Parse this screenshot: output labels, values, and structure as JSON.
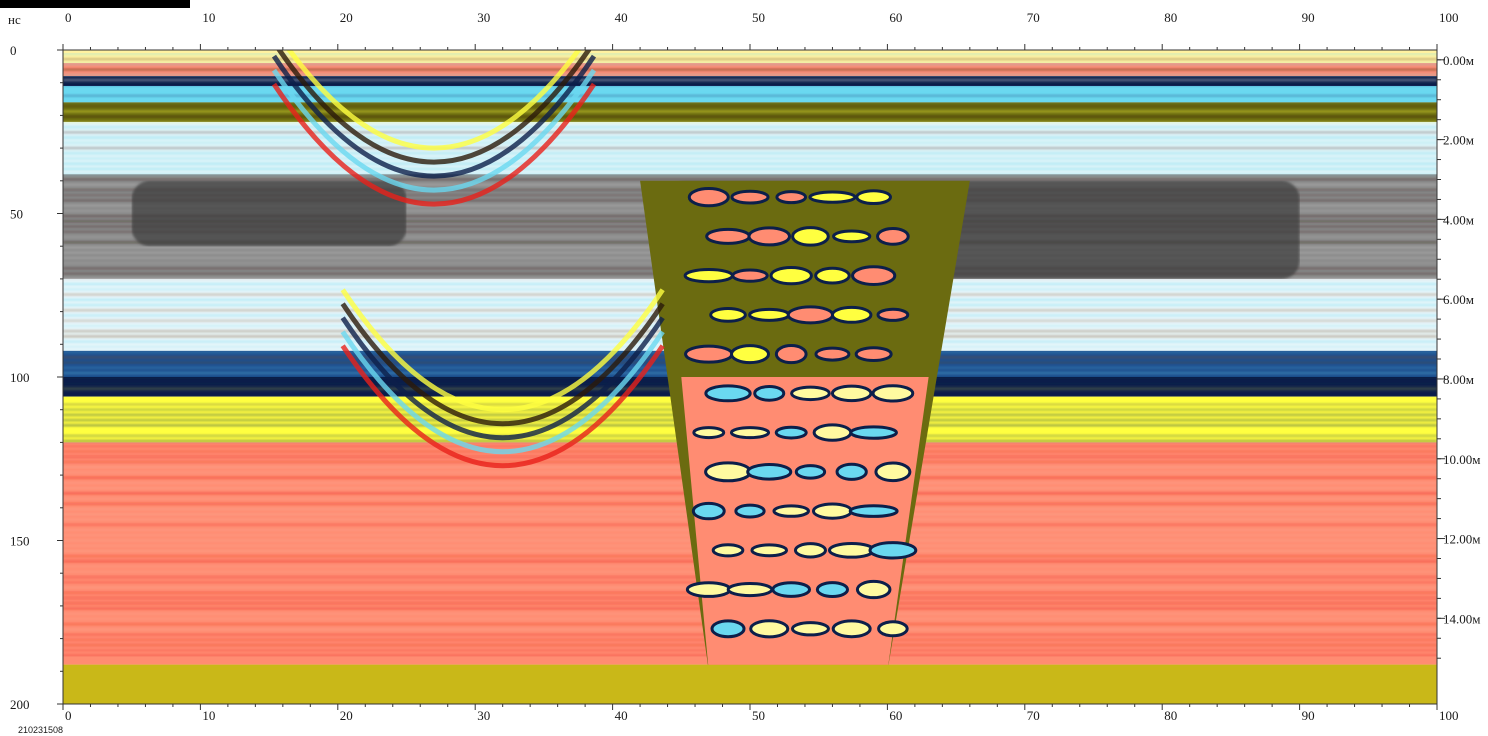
{
  "chart_data": {
    "type": "heatmap",
    "title": "",
    "xlabel": "",
    "ylabel": "нс",
    "xlim": [
      0,
      100
    ],
    "ylim": [
      0,
      200
    ],
    "x_ticks": [
      "0",
      "10",
      "20",
      "30",
      "40",
      "50",
      "60",
      "70",
      "80",
      "90",
      "100"
    ],
    "y_ticks": [
      "0",
      "50",
      "100",
      "150",
      "200"
    ],
    "depth_ticks": [
      "0.00м",
      "2.00м",
      "4.00м",
      "6.00м",
      "8.00м",
      "10.00м",
      "12.00м",
      "14.00м"
    ],
    "depth_values_m": [
      0,
      2,
      4,
      6,
      8,
      10,
      12,
      14
    ],
    "grid": false,
    "colormap": [
      "#0c1f4a",
      "#1d4f8f",
      "#6ad8f0",
      "#f2f2f2",
      "#8a8a8a",
      "#2a1a0a",
      "#6b6b10",
      "#ffff40",
      "#ff8c72",
      "#e8201a"
    ],
    "features": [
      {
        "name": "upper-dark-layer",
        "x": [
          5,
          25
        ],
        "y_ns": [
          40,
          60
        ]
      },
      {
        "name": "upper-dark-layer",
        "x": [
          44,
          90
        ],
        "y_ns": [
          40,
          70
        ]
      },
      {
        "name": "hyperbola",
        "apex_x": 27,
        "apex_y_ns": 30
      },
      {
        "name": "hyperbola",
        "apex_x": 32,
        "apex_y_ns": 110
      },
      {
        "name": "trough",
        "x": [
          42,
          66
        ],
        "y_ns": [
          40,
          190
        ]
      }
    ]
  },
  "id_label": "210231508"
}
